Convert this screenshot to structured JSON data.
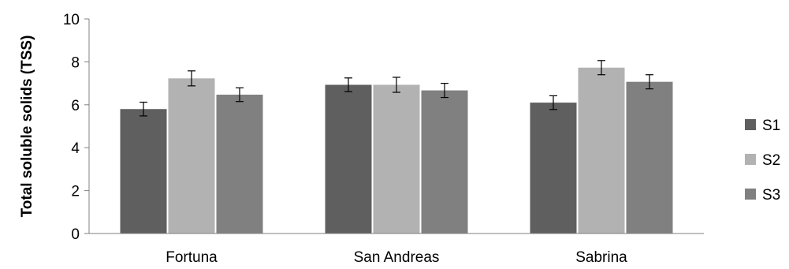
{
  "chart_data": {
    "type": "bar",
    "title": "",
    "xlabel": "",
    "ylabel": "Total soluble solids (TSS)",
    "ylim": [
      0,
      10
    ],
    "yticks": [
      0,
      2,
      4,
      6,
      8,
      10
    ],
    "grid": false,
    "legend_position": "right",
    "categories": [
      "Fortuna",
      "San Andreas",
      "Sabrina"
    ],
    "series": [
      {
        "name": "S1",
        "color": "#5f5f5f",
        "values": [
          5.8,
          6.93,
          6.1
        ],
        "errors": [
          0.32,
          0.32,
          0.32
        ]
      },
      {
        "name": "S2",
        "color": "#b2b2b2",
        "values": [
          7.23,
          6.93,
          7.73
        ],
        "errors": [
          0.35,
          0.35,
          0.33
        ]
      },
      {
        "name": "S3",
        "color": "#808080",
        "values": [
          6.47,
          6.67,
          7.07
        ],
        "errors": [
          0.32,
          0.33,
          0.33
        ]
      }
    ]
  }
}
